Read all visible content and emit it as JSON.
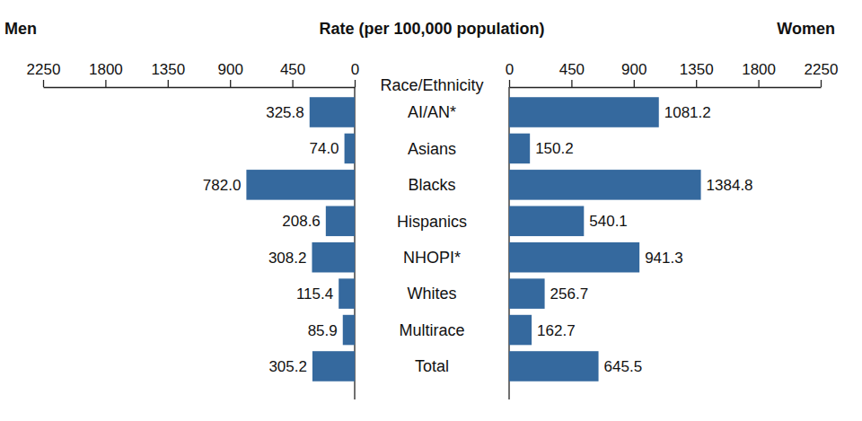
{
  "chart_data": {
    "type": "bar",
    "orientation": "horizontal",
    "xlabel": "Rate (per 100,000 population)",
    "ylabel": "Race/Ethnicity",
    "categories": [
      "AI/AN*",
      "Asians",
      "Blacks",
      "Hispanics",
      "NHOPI*",
      "Whites",
      "Multirace",
      "Total"
    ],
    "series": [
      {
        "name": "Men",
        "color": "#35699e",
        "values": [
          325.8,
          74.0,
          782.0,
          208.6,
          308.2,
          115.4,
          85.9,
          305.2
        ],
        "value_labels": [
          "325.8",
          "74.0",
          "782.0",
          "208.6",
          "308.2",
          "115.4",
          "85.9",
          "305.2"
        ]
      },
      {
        "name": "Women",
        "color": "#35699e",
        "values": [
          1081.2,
          150.2,
          1384.8,
          540.1,
          941.3,
          256.7,
          162.7,
          645.5
        ],
        "value_labels": [
          "1081.2",
          "150.2",
          "1384.8",
          "540.1",
          "941.3",
          "256.7",
          "162.7",
          "645.5"
        ]
      }
    ],
    "xlim": [
      0,
      2250
    ],
    "xticks": [
      0,
      450,
      900,
      1350,
      1800,
      2250
    ],
    "data_labels": true,
    "grid": false
  }
}
